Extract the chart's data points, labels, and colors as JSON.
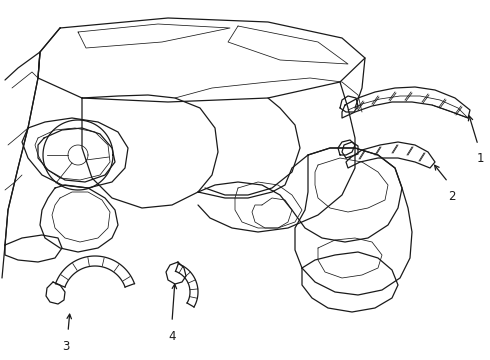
{
  "bg_color": "#ffffff",
  "line_color": "#1a1a1a",
  "lw_main": 0.9,
  "lw_thin": 0.55,
  "lw_label": 0.7,
  "label_fontsize": 8.5,
  "figsize": [
    4.9,
    3.6
  ],
  "dpi": 100,
  "xlim": [
    0,
    490
  ],
  "ylim": [
    0,
    360
  ]
}
